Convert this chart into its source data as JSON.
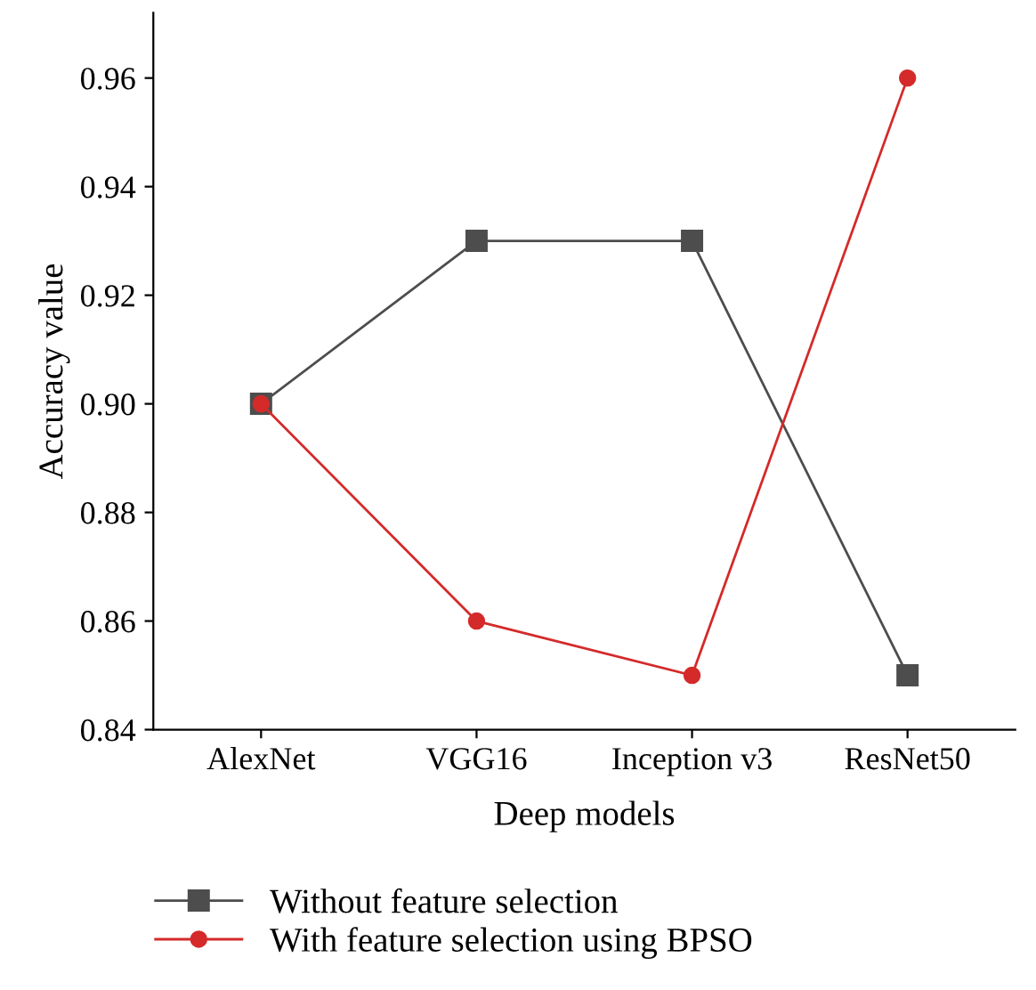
{
  "chart_data": {
    "type": "line",
    "xlabel": "Deep models",
    "ylabel": "Accuracy value",
    "categories": [
      "AlexNet",
      "VGG16",
      "Inception v3",
      "ResNet50"
    ],
    "series": [
      {
        "name": "Without feature selection",
        "color": "#4d4d4d",
        "marker": "square",
        "values": [
          0.9,
          0.93,
          0.93,
          0.85
        ]
      },
      {
        "name": "With feature selection using BPSO",
        "color": "#d42a2a",
        "marker": "circle",
        "values": [
          0.9,
          0.86,
          0.85,
          0.96
        ]
      }
    ],
    "ylim": [
      0.84,
      0.972
    ],
    "yticks": [
      0.84,
      0.86,
      0.88,
      {
        "value": 0.9,
        "label": "0.90"
      },
      0.92,
      0.94,
      0.96
    ],
    "grid": false,
    "legend": "bottom",
    "line_style": "solid"
  }
}
